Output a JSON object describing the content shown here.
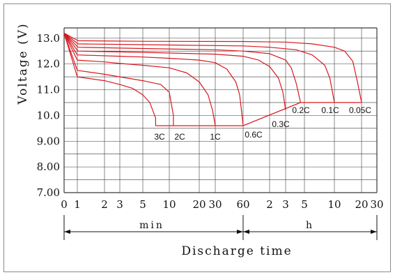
{
  "chart_data": {
    "type": "line",
    "title": "",
    "xlabel": "Discharge time",
    "ylabel": "Voltage (V)",
    "ylim": [
      7.0,
      13.4
    ],
    "grid": true,
    "y_ticks": [
      "13.0",
      "12.0",
      "11.0",
      "10.0",
      "9.00",
      "8.00",
      "7.00"
    ],
    "x_ticks": [
      "0",
      "1",
      "2",
      "3",
      "5",
      "10",
      "20",
      "30",
      "60",
      "2",
      "3",
      "5",
      "10",
      "20",
      "30"
    ],
    "x_segments": [
      {
        "label": "min",
        "from": "0",
        "to": "60 min"
      },
      {
        "label": "h",
        "from": "60 min",
        "to": "30 h"
      }
    ],
    "series": [
      {
        "name": "3C",
        "unit": "min",
        "x": [
          0,
          1,
          2,
          3,
          4,
          5,
          6,
          7,
          7
        ],
        "y": [
          13.2,
          11.5,
          11.35,
          11.2,
          11.05,
          10.8,
          10.5,
          9.9,
          9.6
        ]
      },
      {
        "name": "2C",
        "unit": "min",
        "x": [
          0,
          1,
          2,
          3,
          5,
          8,
          10,
          11,
          11
        ],
        "y": [
          13.2,
          11.75,
          11.6,
          11.5,
          11.35,
          11.2,
          10.9,
          10.0,
          9.6
        ]
      },
      {
        "name": "1C",
        "unit": "min",
        "x": [
          0,
          1,
          2,
          3,
          5,
          10,
          15,
          20,
          25,
          28,
          30
        ],
        "y": [
          13.2,
          12.15,
          12.08,
          12.02,
          11.95,
          11.85,
          11.65,
          11.3,
          10.8,
          10.2,
          9.6
        ]
      },
      {
        "name": "0.6C",
        "unit": "min",
        "x": [
          0,
          1,
          3,
          5,
          10,
          20,
          30,
          40,
          50,
          55,
          58,
          60
        ],
        "y": [
          13.2,
          12.35,
          12.3,
          12.27,
          12.22,
          12.15,
          12.05,
          11.8,
          11.3,
          10.8,
          10.1,
          9.6
        ]
      },
      {
        "name": "0.3C",
        "unit": "h",
        "x": [
          0,
          0.017,
          0.083,
          0.5,
          1,
          1.5,
          2,
          2.5,
          2.8,
          3
        ],
        "y": [
          13.2,
          12.5,
          12.45,
          12.38,
          12.3,
          12.15,
          11.9,
          11.45,
          10.9,
          10.2
        ]
      },
      {
        "name": "0.2C",
        "unit": "h",
        "x": [
          0,
          0.017,
          0.083,
          0.5,
          1,
          2,
          3,
          3.5,
          4,
          4.5
        ],
        "y": [
          13.2,
          12.65,
          12.6,
          12.55,
          12.5,
          12.4,
          12.15,
          11.85,
          11.25,
          10.5
        ]
      },
      {
        "name": "0.1C",
        "unit": "h",
        "x": [
          0,
          0.017,
          0.083,
          1,
          2,
          4,
          6,
          8,
          9,
          10
        ],
        "y": [
          13.2,
          12.78,
          12.75,
          12.7,
          12.65,
          12.55,
          12.35,
          11.95,
          11.45,
          10.5
        ]
      },
      {
        "name": "0.05C",
        "unit": "h",
        "x": [
          0,
          0.017,
          0.083,
          1,
          3,
          6,
          10,
          13,
          16,
          18,
          20
        ],
        "y": [
          13.2,
          12.9,
          12.88,
          12.87,
          12.85,
          12.78,
          12.65,
          12.5,
          12.1,
          11.3,
          10.5
        ]
      }
    ],
    "endpoint_line": {
      "points": [
        [
          "7 min",
          9.6
        ],
        [
          "60 min",
          9.6
        ],
        [
          "4.5 h",
          10.5
        ],
        [
          "20 h",
          10.5
        ]
      ]
    },
    "colors": {
      "curves": "#d8181f",
      "grid": "#3a3a3a",
      "frame": "#8a8a8a"
    }
  }
}
